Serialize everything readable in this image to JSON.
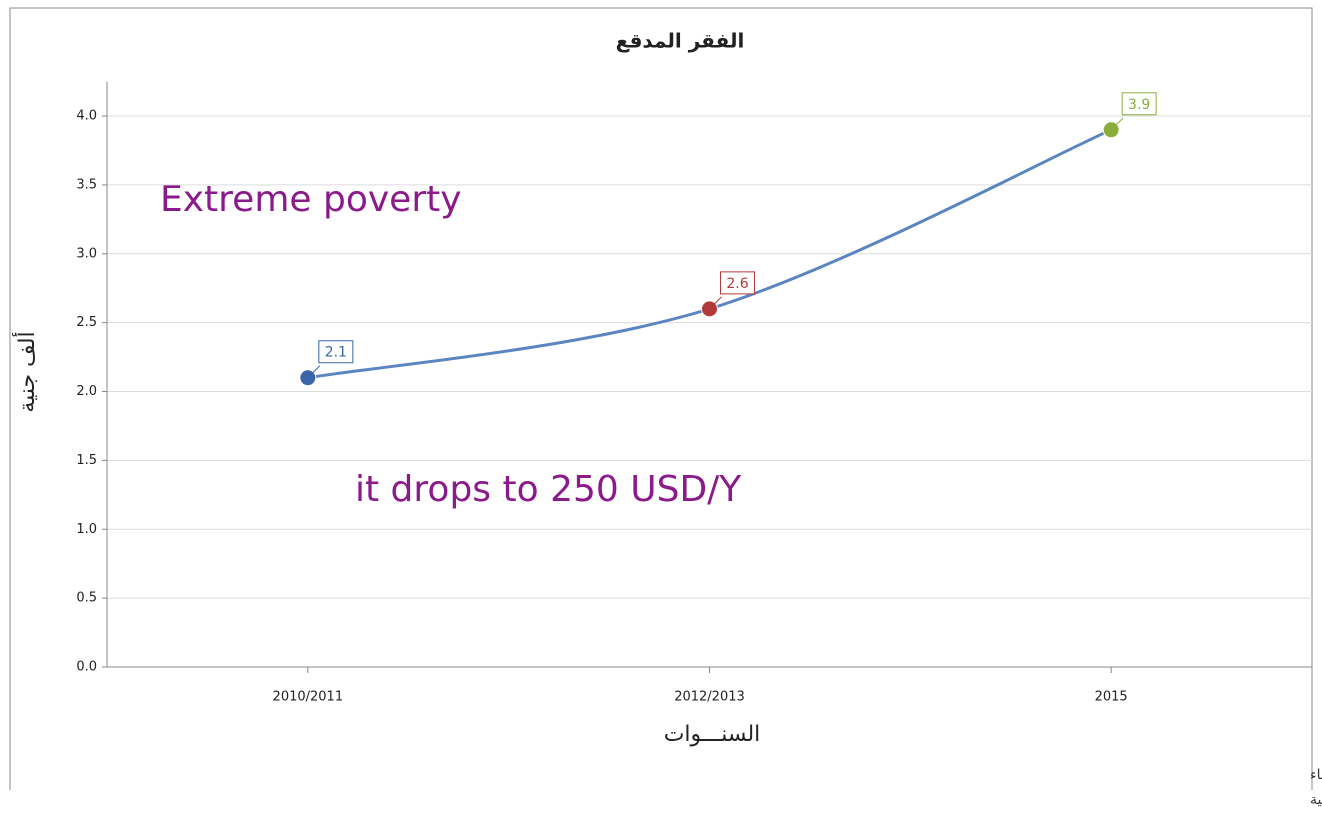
{
  "chart_data": {
    "type": "line",
    "title": "الفقر المدقع",
    "x_label": "السنـــوات",
    "y_label": "ألف جنية",
    "categories": [
      "2010/2011",
      "2012/2013",
      "2015"
    ],
    "series": [
      {
        "name": null,
        "color": "#5b85c0",
        "point_colors": [
          "#3a65a8",
          "#b03a3a",
          "#8aad3a"
        ],
        "values": [
          2.1,
          2.6,
          3.9
        ]
      }
    ],
    "ylim": [
      0,
      4.25
    ],
    "yticks": [
      {
        "value": 0,
        "label": "0.0"
      },
      0.5,
      {
        "value": 1,
        "label": "1.0"
      },
      1.5,
      {
        "value": 2,
        "label": "2.0"
      },
      2.5,
      {
        "value": 3,
        "label": "3.0"
      },
      3.5,
      {
        "value": 4,
        "label": "4.0"
      }
    ],
    "grid": true,
    "smooth": true,
    "annotations": [
      "Extreme poverty",
      "it drops to 250 USD/Y"
    ],
    "footer": [
      "حقوق الملكية للجهــــاز المركزي للتعبئة العــامة والأحصـــــاء",
      "المصدر الأسـاسـي للأحصاءات الرسـمية لجمهورية مصر العربية"
    ]
  }
}
